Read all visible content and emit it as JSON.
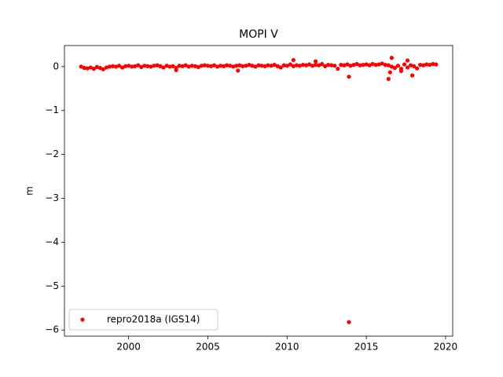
{
  "chart_data": {
    "type": "scatter",
    "title": "MOPI V",
    "ylabel": "m",
    "xlim": [
      1995.95,
      2020.45
    ],
    "ylim": [
      -6.14,
      0.48
    ],
    "xticks": [
      2000,
      2005,
      2010,
      2015,
      2020
    ],
    "yticks": [
      0,
      {
        "value": -1,
        "label": "−1"
      },
      {
        "value": -2,
        "label": "−2"
      },
      {
        "value": -3,
        "label": "−3"
      },
      {
        "value": -4,
        "label": "−4"
      },
      {
        "value": -5,
        "label": "−5"
      },
      {
        "value": -6,
        "label": "−6"
      }
    ],
    "grid": false,
    "legend_loc": "lower left",
    "series": [
      {
        "name": "repro2018a (IGS14)",
        "color": "#ff0000",
        "x": [
          1997.0,
          1997.2,
          1997.4,
          1997.6,
          1997.8,
          1998.0,
          1998.2,
          1998.4,
          1998.6,
          1998.8,
          1999.0,
          1999.2,
          1999.4,
          1999.6,
          1999.8,
          2000.0,
          2000.2,
          2000.4,
          2000.6,
          2000.8,
          2001.0,
          2001.2,
          2001.4,
          2001.6,
          2001.8,
          2002.0,
          2002.2,
          2002.4,
          2002.6,
          2002.8,
          2003.0,
          2003.2,
          2003.4,
          2003.6,
          2003.8,
          2004.0,
          2004.2,
          2004.4,
          2004.6,
          2004.8,
          2005.0,
          2005.2,
          2005.4,
          2005.6,
          2005.8,
          2006.0,
          2006.2,
          2006.4,
          2006.6,
          2006.8,
          2007.0,
          2007.2,
          2007.4,
          2007.6,
          2007.8,
          2008.0,
          2008.2,
          2008.4,
          2008.6,
          2008.8,
          2009.0,
          2009.2,
          2009.4,
          2009.6,
          2009.8,
          2010.0,
          2010.2,
          2010.4,
          2010.6,
          2010.8,
          2011.0,
          2011.2,
          2011.4,
          2011.6,
          2011.8,
          2012.0,
          2012.2,
          2012.4,
          2012.6,
          2012.8,
          2013.0,
          2013.2,
          2013.4,
          2013.6,
          2013.8,
          2014.0,
          2014.2,
          2014.4,
          2014.6,
          2014.8,
          2015.0,
          2015.2,
          2015.4,
          2015.6,
          2015.8,
          2016.0,
          2016.2,
          2016.4,
          2016.6,
          2016.8,
          2017.0,
          2017.2,
          2017.4,
          2017.6,
          2017.8,
          2018.0,
          2018.2,
          2018.4,
          2018.6,
          2018.8,
          2019.0,
          2019.2,
          2019.4,
          2010.4,
          2011.8,
          2013.9,
          2013.9,
          2016.4,
          2016.6,
          2016.5,
          2017.6,
          2017.9,
          2017.2,
          2006.9,
          2003.0
        ],
        "values": [
          0.0,
          -0.03,
          -0.04,
          -0.02,
          -0.05,
          -0.01,
          -0.03,
          -0.06,
          -0.02,
          0.0,
          0.01,
          0.0,
          0.02,
          -0.02,
          0.01,
          0.02,
          0.0,
          0.01,
          0.03,
          -0.01,
          0.02,
          0.01,
          0.0,
          0.02,
          0.03,
          0.01,
          -0.02,
          0.02,
          0.0,
          0.01,
          -0.03,
          0.02,
          0.01,
          0.03,
          0.0,
          0.02,
          0.01,
          -0.01,
          0.02,
          0.03,
          0.02,
          0.01,
          0.03,
          0.0,
          0.02,
          0.01,
          0.03,
          0.02,
          0.0,
          0.02,
          0.03,
          0.01,
          0.02,
          0.04,
          0.02,
          0.0,
          0.03,
          0.02,
          0.01,
          0.03,
          0.02,
          0.04,
          0.01,
          -0.02,
          0.03,
          0.02,
          0.05,
          0.01,
          0.03,
          0.02,
          0.04,
          0.03,
          0.05,
          0.02,
          0.04,
          0.03,
          0.06,
          0.01,
          0.04,
          0.03,
          0.02,
          -0.05,
          0.04,
          0.03,
          0.05,
          0.02,
          0.04,
          0.06,
          0.03,
          0.04,
          0.05,
          0.03,
          0.06,
          0.04,
          0.05,
          0.07,
          0.04,
          0.03,
          0.0,
          -0.03,
          0.02,
          -0.05,
          0.05,
          -0.02,
          0.03,
          0.01,
          -0.04,
          0.04,
          0.03,
          0.05,
          0.04,
          0.06,
          0.05,
          0.15,
          0.12,
          -0.23,
          -5.82,
          -0.28,
          0.2,
          -0.13,
          0.14,
          -0.2,
          -0.1,
          -0.09,
          -0.08
        ]
      }
    ]
  }
}
